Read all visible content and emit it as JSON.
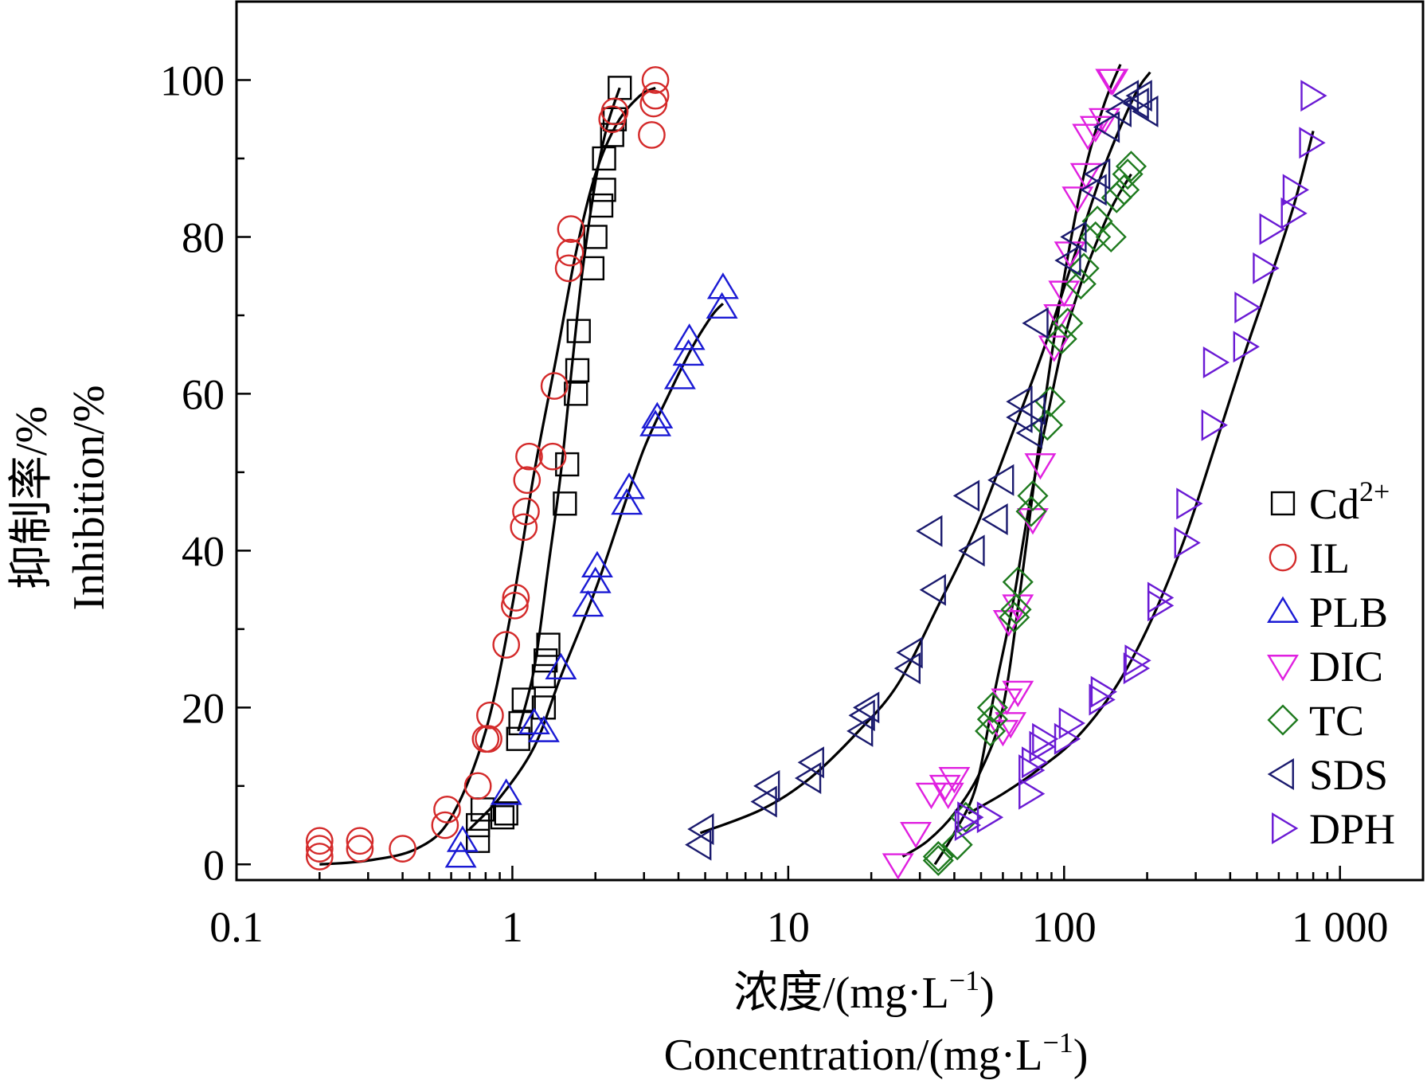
{
  "chart_data": {
    "type": "scatter",
    "x_scale": "log",
    "xlim": [
      0.1,
      2000
    ],
    "ylim": [
      -2,
      110
    ],
    "x_ticks": [
      {
        "value": 0.1,
        "label": "0.1"
      },
      {
        "value": 1,
        "label": "1"
      },
      {
        "value": 10,
        "label": "10"
      },
      {
        "value": 100,
        "label": "100"
      },
      {
        "value": 1000,
        "label": "1 000"
      }
    ],
    "y_ticks": [
      {
        "value": 0,
        "label": "0"
      },
      {
        "value": 20,
        "label": "20"
      },
      {
        "value": 40,
        "label": "40"
      },
      {
        "value": 60,
        "label": "60"
      },
      {
        "value": 80,
        "label": "80"
      },
      {
        "value": 100,
        "label": "100"
      }
    ],
    "xlabel": {
      "zh": "浓度/(mg·L",
      "en": "Concentration/(mg·L",
      "sup": "−1",
      "close": ")"
    },
    "ylabel": {
      "zh": "抑制率/%",
      "en": "Inhibition/%"
    },
    "grid": false,
    "legend_position": "right",
    "series": [
      {
        "name": "Cd",
        "sup": "2+",
        "marker": "square",
        "color": "#000000",
        "points": [
          [
            0.75,
            3
          ],
          [
            0.75,
            5
          ],
          [
            0.78,
            7
          ],
          [
            0.92,
            6
          ],
          [
            0.95,
            6.5
          ],
          [
            1.05,
            16
          ],
          [
            1.07,
            18
          ],
          [
            1.1,
            21
          ],
          [
            1.3,
            20
          ],
          [
            1.3,
            24
          ],
          [
            1.32,
            26
          ],
          [
            1.35,
            28
          ],
          [
            1.55,
            46
          ],
          [
            1.58,
            51
          ],
          [
            1.7,
            60
          ],
          [
            1.72,
            63
          ],
          [
            1.74,
            68
          ],
          [
            1.95,
            76
          ],
          [
            2.0,
            80
          ],
          [
            2.1,
            84
          ],
          [
            2.15,
            86
          ],
          [
            2.15,
            90
          ],
          [
            2.3,
            93
          ],
          [
            2.35,
            95
          ],
          [
            2.45,
            99
          ]
        ],
        "curve": [
          [
            1.05,
            17
          ],
          [
            1.2,
            25
          ],
          [
            1.35,
            38
          ],
          [
            1.5,
            50
          ],
          [
            1.65,
            64
          ],
          [
            1.8,
            76
          ],
          [
            2.0,
            87
          ],
          [
            2.2,
            94
          ],
          [
            2.45,
            99
          ]
        ]
      },
      {
        "name": "IL",
        "marker": "circle",
        "color": "#d42a2a",
        "points": [
          [
            0.2,
            1
          ],
          [
            0.2,
            2
          ],
          [
            0.2,
            3
          ],
          [
            0.28,
            2
          ],
          [
            0.28,
            3
          ],
          [
            0.4,
            2
          ],
          [
            0.57,
            5
          ],
          [
            0.58,
            7
          ],
          [
            0.75,
            10
          ],
          [
            0.8,
            16
          ],
          [
            0.82,
            16
          ],
          [
            0.83,
            19
          ],
          [
            0.95,
            28
          ],
          [
            1.02,
            33
          ],
          [
            1.03,
            34
          ],
          [
            1.1,
            43
          ],
          [
            1.12,
            45
          ],
          [
            1.13,
            49
          ],
          [
            1.15,
            52
          ],
          [
            1.4,
            52
          ],
          [
            1.42,
            61
          ],
          [
            1.6,
            76
          ],
          [
            1.62,
            78
          ],
          [
            1.63,
            81
          ],
          [
            2.3,
            95
          ],
          [
            2.35,
            96
          ],
          [
            3.2,
            93
          ],
          [
            3.25,
            97
          ],
          [
            3.3,
            98
          ],
          [
            3.3,
            100
          ]
        ],
        "curve": [
          [
            0.2,
            0
          ],
          [
            0.3,
            0.5
          ],
          [
            0.45,
            2
          ],
          [
            0.6,
            6
          ],
          [
            0.8,
            17
          ],
          [
            1.0,
            33
          ],
          [
            1.2,
            50
          ],
          [
            1.45,
            65
          ],
          [
            1.7,
            78
          ],
          [
            2.0,
            88
          ],
          [
            2.4,
            94.5
          ],
          [
            2.9,
            98
          ],
          [
            3.3,
            99
          ]
        ]
      },
      {
        "name": "PLB",
        "marker": "triangle-up",
        "color": "#1a1ad4",
        "points": [
          [
            0.65,
            1
          ],
          [
            0.66,
            3
          ],
          [
            0.95,
            9
          ],
          [
            1.2,
            18
          ],
          [
            1.3,
            17
          ],
          [
            1.5,
            25
          ],
          [
            1.88,
            33
          ],
          [
            2.0,
            36
          ],
          [
            2.03,
            38
          ],
          [
            2.6,
            46
          ],
          [
            2.65,
            48
          ],
          [
            3.3,
            56
          ],
          [
            3.35,
            57
          ],
          [
            4.05,
            62
          ],
          [
            4.35,
            65
          ],
          [
            4.38,
            67
          ],
          [
            5.75,
            71
          ],
          [
            5.8,
            73.5
          ]
        ],
        "curve": [
          [
            0.7,
            4.5
          ],
          [
            0.9,
            8.5
          ],
          [
            1.2,
            15
          ],
          [
            1.5,
            24
          ],
          [
            2.0,
            35
          ],
          [
            2.5,
            45
          ],
          [
            3.0,
            53
          ],
          [
            3.7,
            60
          ],
          [
            4.5,
            66
          ],
          [
            5.3,
            70
          ],
          [
            5.8,
            71.5
          ]
        ]
      },
      {
        "name": "DIC",
        "marker": "triangle-down",
        "color": "#e020e0",
        "points": [
          [
            25,
            0
          ],
          [
            29,
            4
          ],
          [
            33,
            9
          ],
          [
            37,
            10
          ],
          [
            38,
            9
          ],
          [
            40,
            11
          ],
          [
            60,
            17
          ],
          [
            64,
            18
          ],
          [
            62,
            21
          ],
          [
            68,
            22
          ],
          [
            63,
            31
          ],
          [
            68,
            33
          ],
          [
            77,
            44
          ],
          [
            82,
            51
          ],
          [
            92,
            66
          ],
          [
            96,
            70
          ],
          [
            100,
            73
          ],
          [
            105,
            78
          ],
          [
            112,
            85
          ],
          [
            120,
            88
          ],
          [
            122,
            93
          ],
          [
            130,
            94
          ],
          [
            140,
            95
          ],
          [
            150,
            100
          ],
          [
            148,
            100
          ]
        ],
        "curve": [
          [
            26,
            1
          ],
          [
            32,
            3
          ],
          [
            40,
            6.5
          ],
          [
            50,
            12
          ],
          [
            60,
            20
          ],
          [
            70,
            36
          ],
          [
            80,
            52
          ],
          [
            92,
            67
          ],
          [
            105,
            79
          ],
          [
            120,
            89
          ],
          [
            140,
            97
          ],
          [
            160,
            102
          ]
        ]
      },
      {
        "name": "TC",
        "marker": "diamond",
        "color": "#1e7a1e",
        "points": [
          [
            35,
            0.5
          ],
          [
            35,
            1
          ],
          [
            41,
            2.5
          ],
          [
            44,
            6
          ],
          [
            54,
            17
          ],
          [
            55,
            18.5
          ],
          [
            55,
            20
          ],
          [
            66,
            31.5
          ],
          [
            67,
            32.5
          ],
          [
            68,
            36
          ],
          [
            76,
            45
          ],
          [
            77,
            47
          ],
          [
            87,
            56
          ],
          [
            89,
            59
          ],
          [
            98,
            67
          ],
          [
            103,
            69
          ],
          [
            115,
            74
          ],
          [
            118,
            76
          ],
          [
            130,
            80
          ],
          [
            132,
            82
          ],
          [
            148,
            80
          ],
          [
            155,
            85
          ],
          [
            165,
            86
          ],
          [
            170,
            88
          ],
          [
            175,
            89
          ]
        ],
        "curve": [
          [
            34,
            0
          ],
          [
            40,
            4
          ],
          [
            48,
            10
          ],
          [
            56,
            22
          ],
          [
            65,
            33
          ],
          [
            75,
            46
          ],
          [
            88,
            58
          ],
          [
            100,
            67
          ],
          [
            115,
            74
          ],
          [
            130,
            79
          ],
          [
            150,
            84
          ],
          [
            175,
            88
          ]
        ]
      },
      {
        "name": "SDS",
        "marker": "triangle-left",
        "color": "#1a1a6e",
        "points": [
          [
            4.8,
            2.5
          ],
          [
            4.9,
            4.5
          ],
          [
            8.3,
            8
          ],
          [
            8.5,
            10
          ],
          [
            12,
            11
          ],
          [
            12.3,
            13
          ],
          [
            18.5,
            17
          ],
          [
            18.8,
            19
          ],
          [
            19.5,
            20
          ],
          [
            27.5,
            25
          ],
          [
            28,
            27
          ],
          [
            33,
            42.5
          ],
          [
            34,
            35
          ],
          [
            45,
            47
          ],
          [
            47,
            40
          ],
          [
            57,
            44
          ],
          [
            60,
            49
          ],
          [
            70,
            57
          ],
          [
            70,
            59
          ],
          [
            76,
            55
          ],
          [
            78,
            58
          ],
          [
            80,
            69
          ],
          [
            105,
            77
          ],
          [
            110,
            80
          ],
          [
            130,
            86
          ],
          [
            134,
            88
          ],
          [
            145,
            94
          ],
          [
            160,
            96
          ],
          [
            170,
            98
          ],
          [
            185,
            97
          ],
          [
            190,
            98
          ],
          [
            200,
            96
          ]
        ],
        "curve": [
          [
            4.8,
            4
          ],
          [
            8,
            7
          ],
          [
            12,
            11
          ],
          [
            18,
            17
          ],
          [
            25,
            23
          ],
          [
            35,
            33
          ],
          [
            48,
            43
          ],
          [
            65,
            55
          ],
          [
            85,
            66
          ],
          [
            110,
            78
          ],
          [
            140,
            89
          ],
          [
            180,
            98
          ],
          [
            205,
            101
          ]
        ]
      },
      {
        "name": "DPH",
        "marker": "triangle-right",
        "color": "#6a1ad4",
        "points": [
          [
            44,
            5
          ],
          [
            45,
            6
          ],
          [
            53,
            6
          ],
          [
            75,
            9
          ],
          [
            75,
            12
          ],
          [
            77,
            13
          ],
          [
            82,
            15
          ],
          [
            84,
            16
          ],
          [
            101,
            16
          ],
          [
            105,
            18
          ],
          [
            135,
            21
          ],
          [
            137,
            22
          ],
          [
            180,
            25
          ],
          [
            182,
            26
          ],
          [
            220,
            33
          ],
          [
            220,
            34
          ],
          [
            275,
            41
          ],
          [
            280,
            46
          ],
          [
            345,
            56
          ],
          [
            350,
            64
          ],
          [
            450,
            66
          ],
          [
            455,
            71
          ],
          [
            530,
            76
          ],
          [
            560,
            81
          ],
          [
            670,
            83
          ],
          [
            680,
            86
          ],
          [
            780,
            92
          ],
          [
            790,
            98
          ]
        ],
        "curve": [
          [
            45,
            6.5
          ],
          [
            60,
            9
          ],
          [
            80,
            12
          ],
          [
            110,
            16
          ],
          [
            150,
            22
          ],
          [
            200,
            30
          ],
          [
            270,
            41
          ],
          [
            350,
            53
          ],
          [
            450,
            65
          ],
          [
            550,
            74
          ],
          [
            680,
            84
          ],
          [
            800,
            93.5
          ]
        ]
      }
    ]
  }
}
